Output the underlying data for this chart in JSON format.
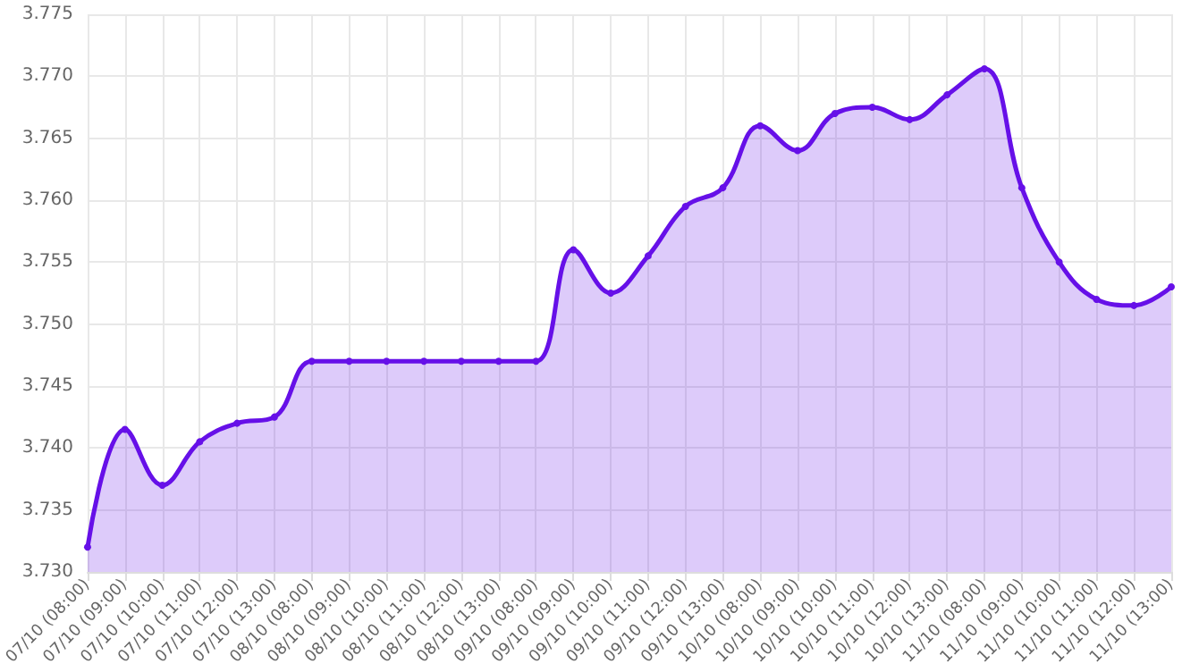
{
  "chart_data": {
    "type": "area",
    "categories": [
      "07/10 (08:00)",
      "07/10 (09:00)",
      "07/10 (10:00)",
      "07/10 (11:00)",
      "07/10 (12:00)",
      "07/10 (13:00)",
      "08/10 (08:00)",
      "08/10 (09:00)",
      "08/10 (10:00)",
      "08/10 (11:00)",
      "08/10 (12:00)",
      "08/10 (13:00)",
      "09/10 (08:00)",
      "09/10 (09:00)",
      "09/10 (10:00)",
      "09/10 (11:00)",
      "09/10 (12:00)",
      "09/10 (13:00)",
      "10/10 (08:00)",
      "10/10 (09:00)",
      "10/10 (10:00)",
      "10/10 (11:00)",
      "10/10 (12:00)",
      "10/10 (13:00)",
      "11/10 (08:00)",
      "11/10 (09:00)",
      "11/10 (10:00)",
      "11/10 (11:00)",
      "11/10 (12:00)",
      "11/10 (13:00)"
    ],
    "series": [
      {
        "color": "#6610e8",
        "values": [
          3.732,
          3.7415,
          3.737,
          3.7405,
          3.742,
          3.7425,
          3.747,
          3.747,
          3.747,
          3.747,
          3.747,
          3.747,
          3.747,
          3.756,
          3.7525,
          3.7555,
          3.7595,
          3.761,
          3.766,
          3.764,
          3.767,
          3.7675,
          3.7665,
          3.7685,
          3.7706,
          3.761,
          3.755,
          3.752,
          3.7515,
          3.753
        ]
      }
    ],
    "ylim": [
      3.73,
      3.775
    ],
    "yticks": [
      {
        "value": 3.73,
        "label": "3.730"
      },
      3.735,
      {
        "value": 3.74,
        "label": "3.740"
      },
      3.745,
      {
        "value": 3.75,
        "label": "3.750"
      },
      3.755,
      {
        "value": 3.76,
        "label": "3.760"
      },
      3.765,
      {
        "value": 3.77,
        "label": "3.770"
      },
      3.775
    ],
    "grid": true,
    "marker": "circle",
    "line_style": "solid"
  }
}
